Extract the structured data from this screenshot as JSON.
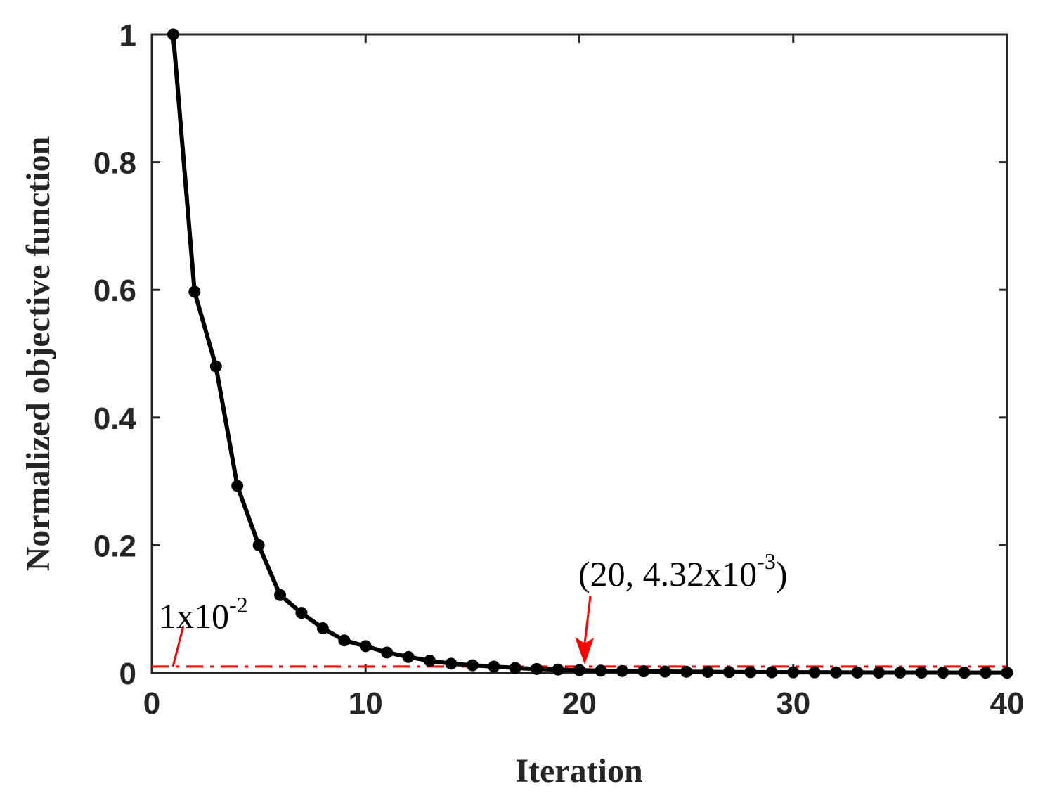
{
  "chart_data": {
    "type": "line",
    "title": "",
    "xlabel": "Iteration",
    "ylabel": "Normalized objective function",
    "xlim": [
      0,
      40
    ],
    "ylim": [
      0,
      1
    ],
    "xticks": [
      0,
      10,
      20,
      30,
      40
    ],
    "xtick_labels": [
      "0",
      "10",
      "20",
      "30",
      "40"
    ],
    "yticks": [
      0,
      0.2,
      0.4,
      0.6,
      0.8,
      1
    ],
    "ytick_labels": [
      "0",
      "0.2",
      "0.4",
      "0.6",
      "0.8",
      "1"
    ],
    "grid": false,
    "legend": null,
    "series": [
      {
        "name": "Normalized objective function",
        "color": "#000000",
        "marker": "circle",
        "x": [
          1,
          2,
          3,
          4,
          5,
          6,
          7,
          8,
          9,
          10,
          11,
          12,
          13,
          14,
          15,
          16,
          17,
          18,
          19,
          20,
          21,
          22,
          23,
          24,
          25,
          26,
          27,
          28,
          29,
          30,
          31,
          32,
          33,
          34,
          35,
          36,
          37,
          38,
          39,
          40
        ],
        "values": [
          1.0,
          0.597,
          0.48,
          0.293,
          0.2,
          0.122,
          0.094,
          0.07,
          0.051,
          0.042,
          0.032,
          0.025,
          0.019,
          0.0145,
          0.012,
          0.0099,
          0.0078,
          0.0062,
          0.0052,
          0.00432,
          0.0036,
          0.003,
          0.0026,
          0.0022,
          0.0019,
          0.0016,
          0.0014,
          0.0012,
          0.0011,
          0.001,
          0.0009,
          0.0008,
          0.0007,
          0.0006,
          0.0006,
          0.0005,
          0.0005,
          0.0004,
          0.0004,
          0.0004
        ]
      }
    ],
    "reference_lines": [
      {
        "type": "horizontal",
        "y": 0.01,
        "style": "dash-dot",
        "color": "#ff0000",
        "label": "1x10^-2"
      }
    ],
    "annotations": [
      {
        "text_main": "1x10",
        "text_sup": "-2",
        "points_to": [
          1,
          0.01
        ],
        "color": "#ff0000"
      },
      {
        "text_main": "(20, 4.32x10",
        "text_sup": "-3",
        "text_tail": ")",
        "points_to": [
          20,
          0.00432
        ],
        "arrow": true,
        "color": "#ff0000"
      }
    ]
  },
  "labels": {
    "xlabel": "Iteration",
    "ylabel": "Normalized objective function",
    "annot1_main": "1x10",
    "annot1_sup": "-2",
    "annot2_main": "(20, 4.32x10",
    "annot2_sup": "-3",
    "annot2_tail": ")"
  }
}
